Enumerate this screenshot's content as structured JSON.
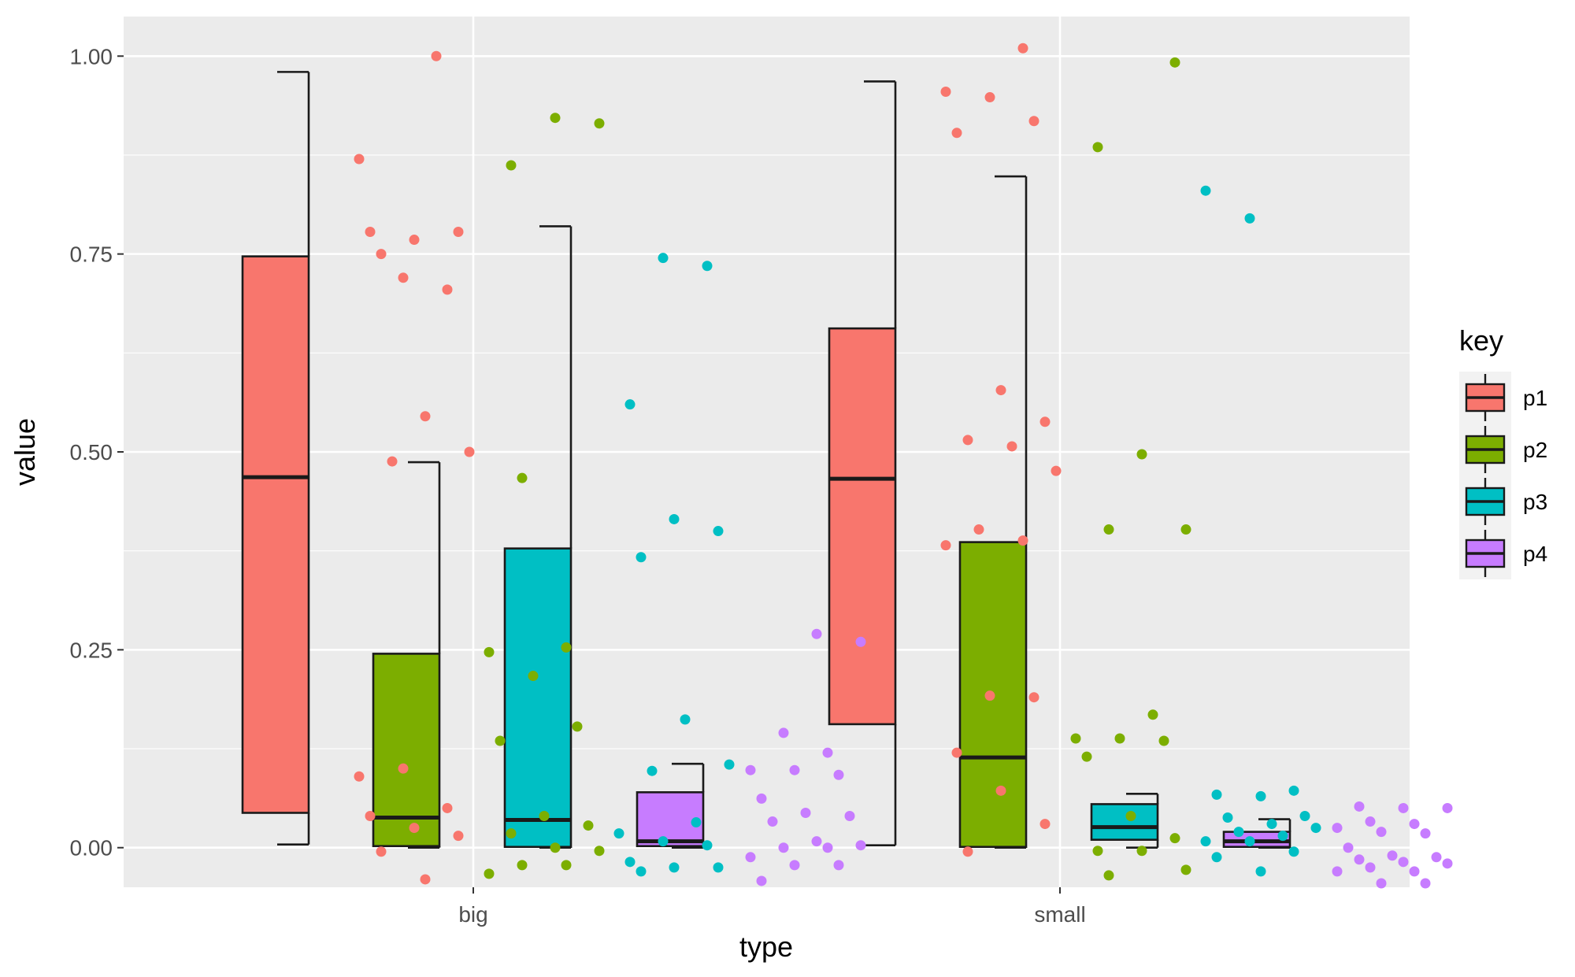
{
  "chart_data": {
    "type": "boxplot",
    "xlabel": "type",
    "ylabel": "value",
    "categories": [
      "big",
      "small"
    ],
    "ylim": [
      -0.05,
      1.05
    ],
    "y_ticks": [
      0.0,
      0.25,
      0.5,
      0.75,
      1.0
    ],
    "y_tick_labels": [
      "0.00",
      "0.25",
      "0.50",
      "0.75",
      "1.00"
    ],
    "grid": true,
    "legend": {
      "title": "key",
      "position": "right"
    },
    "series": [
      {
        "name": "p1",
        "color": "#F8766D",
        "boxes": [
          {
            "category": "big",
            "whisker_low": 0.004,
            "q1": 0.044,
            "median": 0.468,
            "q3": 0.747,
            "whisker_high": 0.98
          },
          {
            "category": "small",
            "whisker_low": 0.003,
            "q1": 0.156,
            "median": 0.466,
            "q3": 0.656,
            "whisker_high": 0.968
          }
        ],
        "points": [
          {
            "category": "big",
            "values": [
              0.87,
              0.72,
              0.705,
              0.778,
              0.768,
              0.778,
              0.75,
              0.545,
              0.5,
              0.488,
              1.0,
              0.09,
              0.1,
              0.05,
              0.04,
              0.025,
              0.015,
              -0.005,
              -0.04
            ]
          },
          {
            "category": "small",
            "values": [
              1.01,
              0.955,
              0.948,
              0.918,
              0.903,
              0.578,
              0.538,
              0.515,
              0.507,
              0.476,
              0.402,
              0.388,
              0.382,
              0.192,
              0.19,
              0.12,
              0.072,
              0.03,
              -0.005
            ]
          }
        ]
      },
      {
        "name": "p2",
        "color": "#7CAE00",
        "boxes": [
          {
            "category": "big",
            "whisker_low": 0.0,
            "q1": 0.002,
            "median": 0.038,
            "q3": 0.245,
            "whisker_high": 0.487
          },
          {
            "category": "small",
            "whisker_low": 0.0,
            "q1": 0.001,
            "median": 0.114,
            "q3": 0.386,
            "whisker_high": 0.848
          }
        ],
        "points": [
          {
            "category": "big",
            "values": [
              0.862,
              0.922,
              0.915,
              0.467,
              0.253,
              0.247,
              0.217,
              0.153,
              0.135,
              0.04,
              0.028,
              0.018,
              0.0,
              -0.004,
              -0.022,
              -0.022,
              -0.033
            ]
          },
          {
            "category": "small",
            "values": [
              0.992,
              0.885,
              0.497,
              0.402,
              0.402,
              0.168,
              0.138,
              0.138,
              0.135,
              0.115,
              0.04,
              0.012,
              -0.004,
              -0.004,
              -0.028,
              -0.035
            ]
          }
        ]
      },
      {
        "name": "p3",
        "color": "#00BFC4",
        "boxes": [
          {
            "category": "big",
            "whisker_low": 0.0,
            "q1": 0.001,
            "median": 0.035,
            "q3": 0.378,
            "whisker_high": 0.785
          },
          {
            "category": "small",
            "whisker_low": 0.0,
            "q1": 0.01,
            "median": 0.026,
            "q3": 0.055,
            "whisker_high": 0.068
          }
        ],
        "points": [
          {
            "category": "big",
            "values": [
              0.745,
              0.735,
              0.56,
              0.415,
              0.4,
              0.367,
              0.162,
              0.105,
              0.097,
              0.032,
              0.018,
              0.008,
              0.003,
              -0.018,
              -0.025,
              -0.025,
              -0.03
            ]
          },
          {
            "category": "small",
            "values": [
              0.83,
              0.795,
              0.072,
              0.067,
              0.065,
              0.04,
              0.038,
              0.03,
              0.025,
              0.02,
              0.015,
              0.008,
              0.008,
              -0.005,
              -0.012,
              -0.03
            ]
          }
        ]
      },
      {
        "name": "p4",
        "color": "#C77CFF",
        "boxes": [
          {
            "category": "big",
            "whisker_low": 0.0,
            "q1": 0.002,
            "median": 0.008,
            "q3": 0.07,
            "whisker_high": 0.106
          },
          {
            "category": "small",
            "whisker_low": 0.0,
            "q1": 0.001,
            "median": 0.008,
            "q3": 0.02,
            "whisker_high": 0.036
          }
        ],
        "points": [
          {
            "category": "big",
            "values": [
              0.27,
              0.26,
              0.145,
              0.12,
              0.098,
              0.098,
              0.092,
              0.062,
              0.044,
              0.04,
              0.033,
              0.008,
              0.003,
              0.0,
              0.0,
              -0.012,
              -0.022,
              -0.022,
              -0.042
            ]
          },
          {
            "category": "small",
            "values": [
              0.052,
              0.05,
              0.05,
              0.033,
              0.03,
              0.025,
              0.02,
              0.018,
              0.0,
              -0.01,
              -0.012,
              -0.015,
              -0.018,
              -0.02,
              -0.025,
              -0.03,
              -0.03,
              -0.045,
              -0.045
            ]
          }
        ]
      }
    ]
  }
}
